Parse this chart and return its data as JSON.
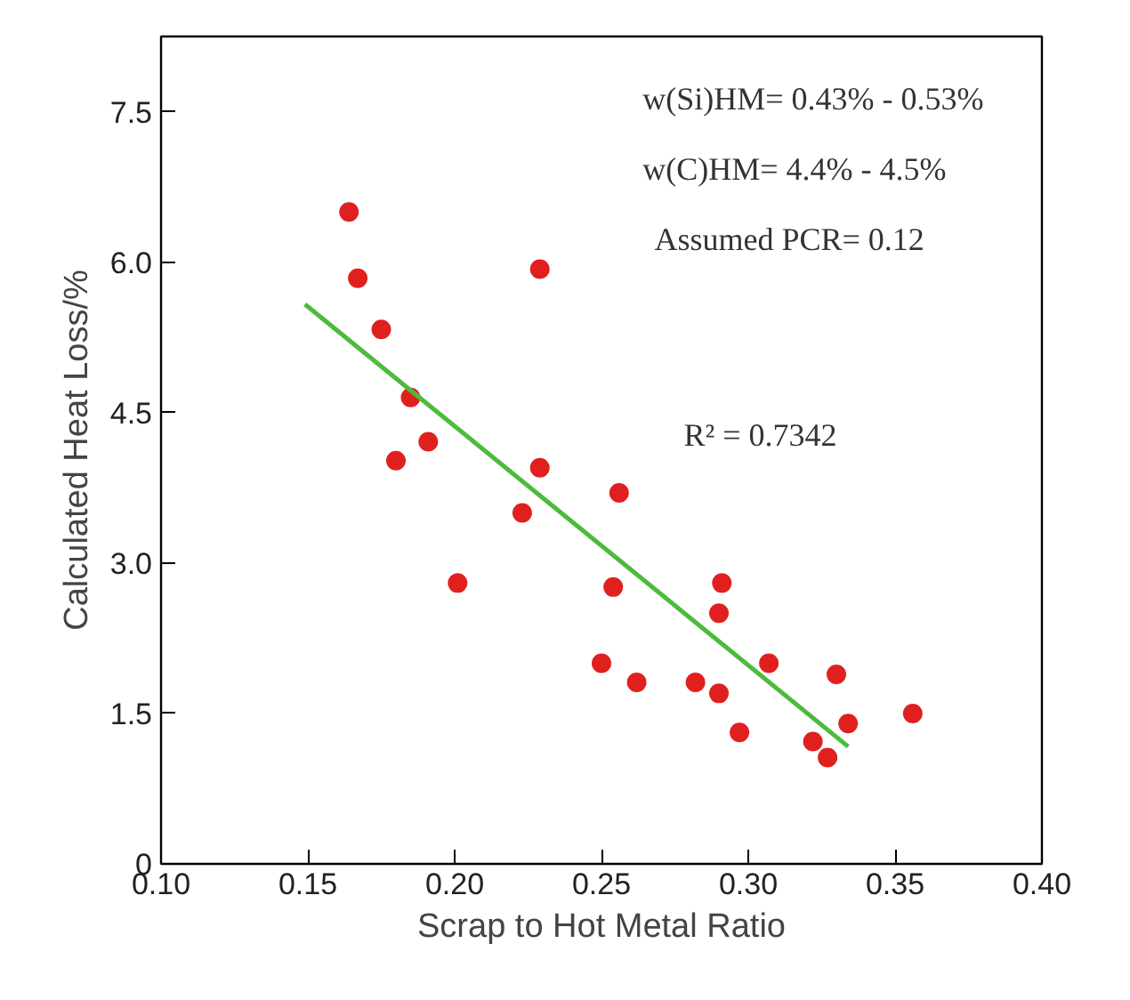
{
  "chart_data": {
    "type": "scatter",
    "xlabel": "Scrap to Hot Metal Ratio",
    "ylabel": "Calculated Heat Loss/%",
    "xlim": [
      0.1,
      0.4
    ],
    "xticks": [
      {
        "value": 0.1,
        "label": "0.10"
      },
      {
        "value": 0.15,
        "label": "0.15"
      },
      {
        "value": 0.2,
        "label": "0.20"
      },
      {
        "value": 0.25,
        "label": "0.25"
      },
      {
        "value": 0.3,
        "label": "0.30"
      },
      {
        "value": 0.35,
        "label": "0.35"
      },
      {
        "value": 0.4,
        "label": "0.40"
      }
    ],
    "ylim": [
      0,
      8.25
    ],
    "yticks": [
      0,
      1.5,
      {
        "value": 3,
        "label": "3.0"
      },
      4.5,
      {
        "value": 6,
        "label": "6.0"
      },
      7.5
    ],
    "grid": false,
    "marker": "circle",
    "annotations": [
      "w(Si)HM= 0.43% - 0.53%",
      "w(C)HM= 4.4% - 4.5%",
      "Assumed PCR= 0.12",
      "R² = 0.7342"
    ],
    "series": [
      {
        "color": "#e0201f",
        "x": [
          0.164,
          0.167,
          0.175,
          0.185,
          0.18,
          0.191,
          0.229,
          0.229,
          0.223,
          0.201,
          0.256,
          0.254,
          0.25,
          0.262,
          0.291,
          0.29,
          0.282,
          0.29,
          0.307,
          0.297,
          0.33,
          0.334,
          0.322,
          0.327,
          0.356
        ],
        "values": [
          6.5,
          5.84,
          5.33,
          4.65,
          4.02,
          4.21,
          5.93,
          3.95,
          3.5,
          2.8,
          3.7,
          2.76,
          2.0,
          1.81,
          2.8,
          2.5,
          1.81,
          1.7,
          2.0,
          1.31,
          1.89,
          1.4,
          1.22,
          1.06,
          1.5
        ]
      },
      {
        "type": "line",
        "marker": "none",
        "color": "#4cbb3c",
        "x": [
          0.149,
          0.334
        ],
        "values": [
          5.58,
          1.17
        ]
      }
    ]
  }
}
